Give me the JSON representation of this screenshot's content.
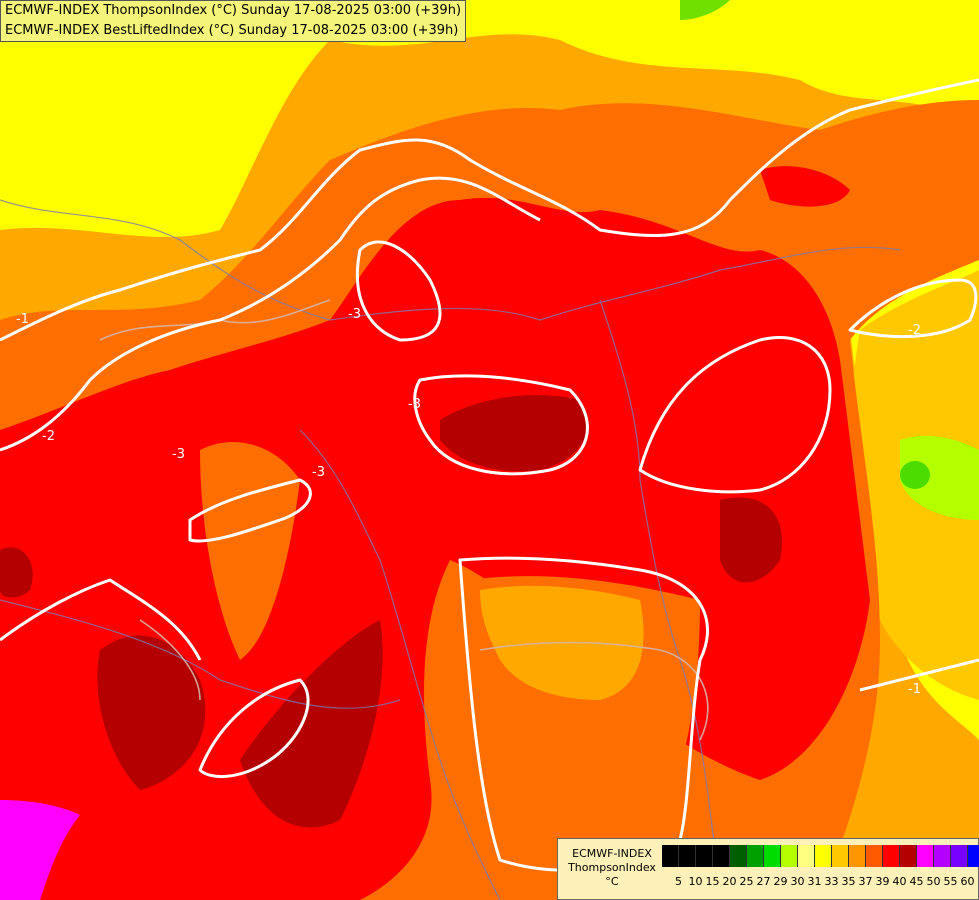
{
  "header": {
    "line1": "ECMWF-INDEX ThompsonIndex (°C) Sunday 17-08-2025 03:00 (+39h)",
    "line2": "ECMWF-INDEX BestLiftedIndex (°C) Sunday 17-08-2025 03:00 (+39h)"
  },
  "contour_labels": [
    "-1",
    "-2",
    "-3",
    "-3",
    "-3",
    "-3",
    "-2",
    "-1"
  ],
  "legend": {
    "model": "ECMWF-INDEX",
    "index": "ThompsonIndex",
    "unit": "°C",
    "ticks": [
      "5",
      "10",
      "15",
      "20",
      "25",
      "27",
      "29",
      "30",
      "31",
      "33",
      "35",
      "37",
      "39",
      "40",
      "45",
      "50",
      "55",
      "60"
    ],
    "colors": [
      "#000000",
      "#000000",
      "#000000",
      "#000000",
      "#006000",
      "#00a000",
      "#00dc00",
      "#b4ff00",
      "#ffff80",
      "#ffff00",
      "#ffc800",
      "#ff9600",
      "#ff5a00",
      "#ff0000",
      "#b40000",
      "#ff00ff",
      "#b400ff",
      "#7800ff",
      "#0000ff"
    ]
  },
  "colors": {
    "yellow": "#ffff00",
    "light_orange": "#ffa800",
    "orange": "#ff6e00",
    "red": "#ff0000",
    "dark_red": "#b40000",
    "magenta": "#ff00ff",
    "green": "#70e000",
    "contour": "#ffffff"
  }
}
